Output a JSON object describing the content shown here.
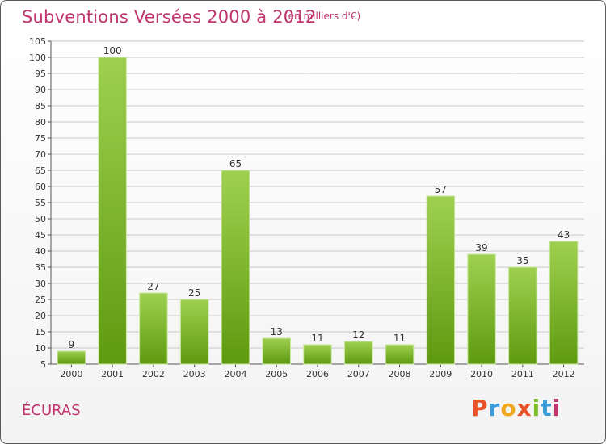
{
  "header": {
    "title": "Subventions Versées 2000 à 2012",
    "subtitle": "(en milliers d'€)"
  },
  "footer": {
    "commune": "ÉCURAS",
    "logo_letters": [
      "P",
      "r",
      "o",
      "x",
      "i",
      "t",
      "i"
    ]
  },
  "colors": {
    "title": "#c0356e",
    "bar_top": "#9fd050",
    "bar_bottom": "#5e9a10",
    "grid": "#c8c8c8",
    "logo": [
      "#e8522b",
      "#3a9bd8",
      "#f0a81e",
      "#e8522b",
      "#7bbf2a",
      "#3a9bd8",
      "#c0356e"
    ]
  },
  "chart_data": {
    "type": "bar",
    "title": "Subventions Versées 2000 à 2012",
    "subtitle": "(en milliers d'€)",
    "categories": [
      "2000",
      "2001",
      "2002",
      "2003",
      "2004",
      "2005",
      "2006",
      "2007",
      "2008",
      "2009",
      "2010",
      "2011",
      "2012"
    ],
    "values": [
      9,
      100,
      27,
      25,
      65,
      13,
      11,
      12,
      11,
      57,
      39,
      35,
      43
    ],
    "ylim": [
      5,
      105
    ],
    "yticks": [
      5,
      10,
      15,
      20,
      25,
      30,
      35,
      40,
      45,
      50,
      55,
      60,
      65,
      70,
      75,
      80,
      85,
      90,
      95,
      100,
      105
    ],
    "grid": true,
    "data_labels": true
  }
}
